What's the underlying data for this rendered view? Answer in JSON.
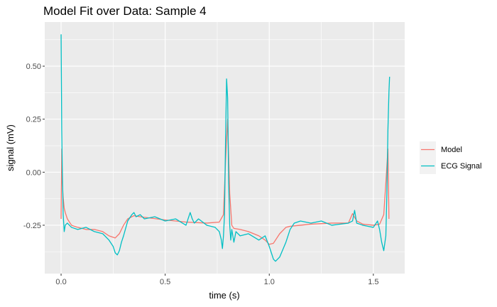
{
  "chart_data": {
    "type": "line",
    "title": "Model Fit over Data: Sample 4",
    "xlabel": "time (s)",
    "ylabel": "signal (mV)",
    "xlim": [
      -0.0786,
      1.6506
    ],
    "ylim": [
      -0.478,
      0.708
    ],
    "x_ticks": [
      0.0,
      0.5,
      1.0,
      1.5
    ],
    "x_tick_labels": [
      "0.0",
      "0.5",
      "1.0",
      "1.5"
    ],
    "y_ticks": [
      -0.25,
      0.0,
      0.25,
      0.5
    ],
    "y_tick_labels": [
      "-0.25",
      "0.00",
      "0.25",
      "0.50"
    ],
    "grid": true,
    "legend_position": "right",
    "series": [
      {
        "name": "Model",
        "color": "#F8766D",
        "x": [
          0.0,
          0.003,
          0.006,
          0.01,
          0.015,
          0.02,
          0.03,
          0.05,
          0.08,
          0.12,
          0.16,
          0.2,
          0.23,
          0.26,
          0.28,
          0.3,
          0.32,
          0.35,
          0.38,
          0.42,
          0.5,
          0.6,
          0.7,
          0.76,
          0.78,
          0.79,
          0.8,
          0.81,
          0.82,
          0.83,
          0.86,
          0.9,
          0.95,
          0.98,
          1.0,
          1.02,
          1.05,
          1.08,
          1.1,
          1.15,
          1.2,
          1.3,
          1.38,
          1.4,
          1.42,
          1.45,
          1.5,
          1.53,
          1.55,
          1.56,
          1.57,
          1.575
        ],
        "values": [
          -0.22,
          0.11,
          -0.05,
          -0.12,
          -0.17,
          -0.19,
          -0.22,
          -0.25,
          -0.26,
          -0.27,
          -0.27,
          -0.28,
          -0.3,
          -0.31,
          -0.29,
          -0.25,
          -0.22,
          -0.205,
          -0.21,
          -0.215,
          -0.225,
          -0.235,
          -0.24,
          -0.235,
          -0.2,
          0.05,
          0.25,
          -0.1,
          -0.25,
          -0.265,
          -0.27,
          -0.28,
          -0.3,
          -0.32,
          -0.34,
          -0.335,
          -0.29,
          -0.26,
          -0.255,
          -0.25,
          -0.245,
          -0.24,
          -0.24,
          -0.195,
          -0.23,
          -0.245,
          -0.25,
          -0.245,
          -0.2,
          -0.05,
          0.11,
          -0.22
        ]
      },
      {
        "name": "ECG Signal",
        "color": "#00BFC4",
        "x": [
          0.0,
          0.003,
          0.006,
          0.01,
          0.015,
          0.02,
          0.03,
          0.05,
          0.08,
          0.12,
          0.16,
          0.2,
          0.23,
          0.25,
          0.26,
          0.27,
          0.28,
          0.29,
          0.3,
          0.32,
          0.34,
          0.35,
          0.36,
          0.38,
          0.4,
          0.45,
          0.5,
          0.55,
          0.6,
          0.62,
          0.63,
          0.64,
          0.66,
          0.7,
          0.74,
          0.76,
          0.77,
          0.775,
          0.78,
          0.785,
          0.79,
          0.795,
          0.8,
          0.805,
          0.81,
          0.815,
          0.82,
          0.83,
          0.84,
          0.86,
          0.9,
          0.95,
          0.98,
          1.0,
          1.01,
          1.02,
          1.03,
          1.05,
          1.08,
          1.1,
          1.12,
          1.15,
          1.2,
          1.25,
          1.3,
          1.38,
          1.4,
          1.41,
          1.42,
          1.45,
          1.5,
          1.52,
          1.53,
          1.54,
          1.55,
          1.56,
          1.565,
          1.57,
          1.575,
          1.578
        ],
        "values": [
          0.65,
          0.2,
          0.0,
          -0.2,
          -0.28,
          -0.25,
          -0.24,
          -0.26,
          -0.27,
          -0.26,
          -0.28,
          -0.29,
          -0.32,
          -0.35,
          -0.38,
          -0.39,
          -0.37,
          -0.33,
          -0.3,
          -0.23,
          -0.2,
          -0.19,
          -0.21,
          -0.2,
          -0.22,
          -0.21,
          -0.23,
          -0.22,
          -0.25,
          -0.19,
          -0.22,
          -0.24,
          -0.22,
          -0.25,
          -0.26,
          -0.28,
          -0.32,
          -0.36,
          -0.3,
          -0.2,
          0.15,
          0.44,
          0.35,
          -0.05,
          -0.25,
          -0.32,
          -0.27,
          -0.33,
          -0.28,
          -0.3,
          -0.29,
          -0.32,
          -0.3,
          -0.35,
          -0.38,
          -0.41,
          -0.42,
          -0.4,
          -0.33,
          -0.27,
          -0.24,
          -0.23,
          -0.24,
          -0.23,
          -0.25,
          -0.24,
          -0.23,
          -0.18,
          -0.24,
          -0.25,
          -0.26,
          -0.23,
          -0.27,
          -0.33,
          -0.37,
          -0.3,
          -0.1,
          0.2,
          0.38,
          0.45
        ]
      }
    ]
  }
}
